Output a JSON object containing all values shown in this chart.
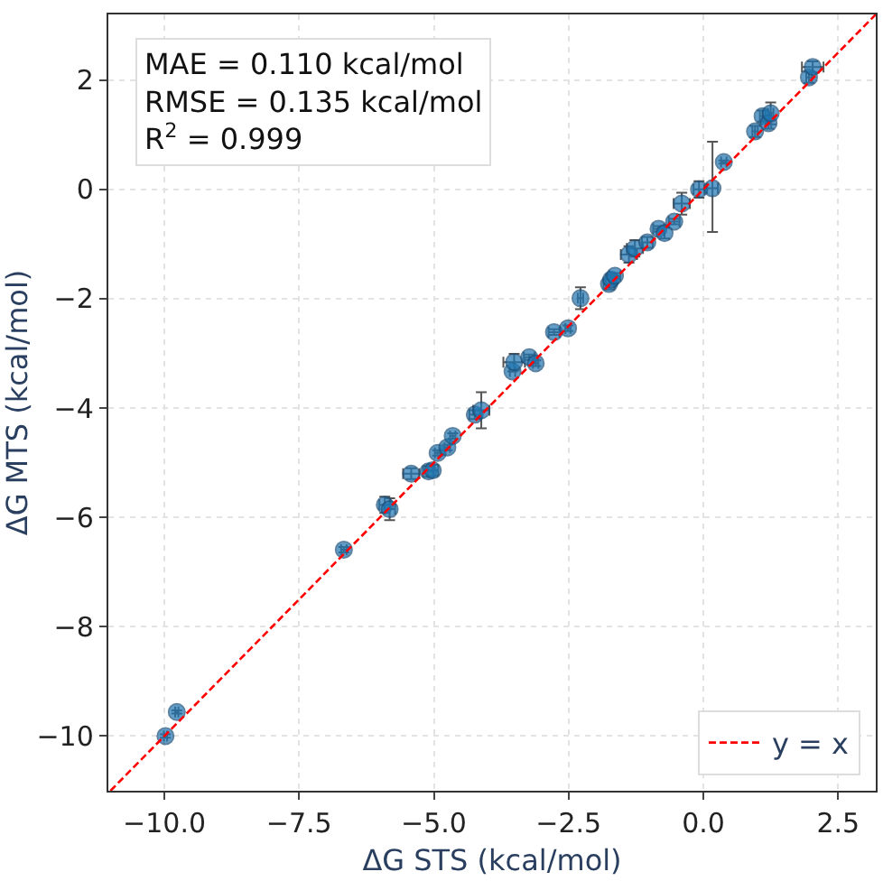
{
  "chart_data": {
    "type": "scatter",
    "xlabel": "ΔG STS (kcal/mol)",
    "ylabel": "ΔG MTS (kcal/mol)",
    "annotations": [
      "MAE = 0.110 kcal/mol",
      "RMSE = 0.135 kcal/mol",
      "R$^{2}$ = 0.999"
    ],
    "xlim": [
      -11.04,
      3.2
    ],
    "ylim": [
      -11.0,
      3.2
    ],
    "xticks": [
      {
        "value": -10,
        "label": "−10.0"
      },
      {
        "value": -7.5,
        "label": "−7.5"
      },
      {
        "value": -5,
        "label": "−5.0"
      },
      {
        "value": -2.5,
        "label": "−2.5"
      },
      {
        "value": 0,
        "label": "0.0"
      },
      {
        "value": 2.5,
        "label": "2.5"
      }
    ],
    "yticks": [
      {
        "value": -10,
        "label": "−10"
      },
      {
        "value": -8,
        "label": "−8"
      },
      {
        "value": -6,
        "label": "−6"
      },
      {
        "value": -4,
        "label": "−4"
      },
      {
        "value": -2,
        "label": "−2"
      },
      0,
      2
    ],
    "grid": true,
    "legend": "bottom right",
    "marker": "circle",
    "series": [
      {
        "color": "#1f77b4",
        "x": [
          -9.98,
          -9.77,
          -6.67,
          -5.91,
          -5.82,
          -5.42,
          -5.1,
          -5.02,
          -4.93,
          -4.75,
          -4.65,
          -4.24,
          -4.12,
          -3.54,
          -3.51,
          -3.23,
          -3.11,
          -2.77,
          -2.51,
          -2.28,
          -1.75,
          -1.71,
          -1.64,
          -1.38,
          -1.27,
          -1.04,
          -0.83,
          -0.72,
          -0.54,
          -0.4,
          -0.08,
          0.17,
          0.38,
          0.96,
          1.1,
          1.21,
          1.25,
          1.96,
          2.03
        ],
        "values": [
          -10.0,
          -9.56,
          -6.59,
          -5.77,
          -5.85,
          -5.2,
          -5.16,
          -5.14,
          -4.82,
          -4.72,
          -4.51,
          -4.12,
          -4.04,
          -3.33,
          -3.16,
          -3.07,
          -3.18,
          -2.61,
          -2.54,
          -1.99,
          -1.73,
          -1.65,
          -1.58,
          -1.19,
          -1.08,
          -0.97,
          -0.72,
          -0.8,
          -0.59,
          -0.26,
          0.0,
          0.02,
          0.5,
          1.06,
          1.34,
          1.21,
          1.39,
          2.05,
          2.24
        ],
        "errors": [
          0.03,
          0.03,
          0.05,
          0.15,
          0.2,
          0.1,
          0.1,
          0.1,
          0.05,
          0.05,
          0.05,
          0.08,
          0.33,
          null,
          0.15,
          0.05,
          0.05,
          0.05,
          0.05,
          0.2,
          0.1,
          0.1,
          0.05,
          0.15,
          0.15,
          0.1,
          0.05,
          0.1,
          0.05,
          0.2,
          0.15,
          [
            -0.8,
            0.85
          ],
          0.03,
          0.1,
          0.1,
          0.1,
          0.2,
          0.1,
          0.1
        ],
        "xerrors": [
          0.03,
          0.03,
          0.05,
          0.1,
          0.1,
          0.15,
          0.1,
          0.1,
          0.05,
          0.05,
          0.05,
          0.1,
          0.15,
          0.05,
          0.2,
          0.1,
          0.05,
          0.1,
          0.05,
          0.05,
          0.1,
          0.1,
          0.1,
          0.15,
          0.15,
          0.1,
          0.1,
          null,
          0.1,
          0.15,
          0.1,
          0.1,
          0.05,
          0.05,
          0.05,
          0.05,
          0.05,
          0.05,
          0.2
        ]
      },
      {
        "type": "line",
        "name": "y = x",
        "color": "#ff0000",
        "line_style": "dashed",
        "marker": "none",
        "x": [
          -11.0,
          3.2
        ],
        "values": [
          -11.0,
          3.2
        ]
      }
    ]
  }
}
